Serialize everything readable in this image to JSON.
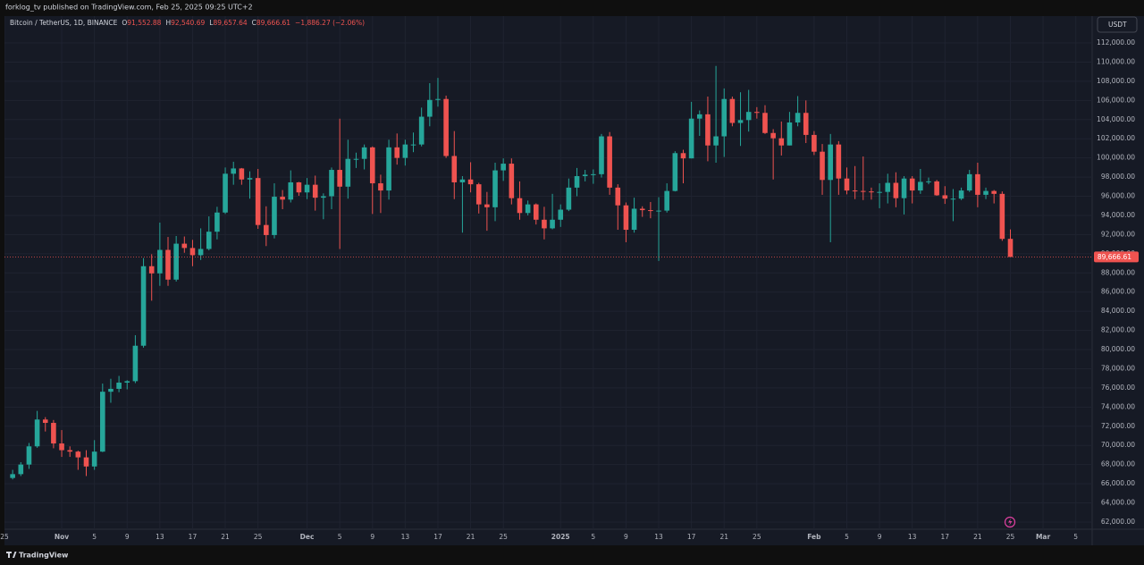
{
  "header": {
    "text": "forklog_tv published on TradingView.com, Feb 25, 2025 09:25 UTC+2"
  },
  "footer": {
    "logo": "TradingView"
  },
  "legend": {
    "symbol": "Bitcoin / TetherUS, 1D, BINANCE",
    "items": [
      {
        "label": "O",
        "value": "91,552.88"
      },
      {
        "label": "H",
        "value": "92,540.69"
      },
      {
        "label": "L",
        "value": "89,657.64"
      },
      {
        "label": "C",
        "value": "89,666.61"
      }
    ],
    "change": "−1,886.27 (−2.06%)"
  },
  "chart_data": {
    "type": "candlestick",
    "currency": "USDT",
    "up_color": "#26a69a",
    "down_color": "#ef5350",
    "grid": true,
    "xlim": [
      "2024-10-25",
      "2025-03-07"
    ],
    "ylim": [
      61250,
      114800
    ],
    "last_price": {
      "value": 89666.61,
      "label": "89,666.61"
    },
    "yticks": [
      {
        "value": 62000,
        "label": "62,000.00"
      },
      {
        "value": 64000,
        "label": "64,000.00"
      },
      {
        "value": 66000,
        "label": "66,000.00"
      },
      {
        "value": 68000,
        "label": "68,000.00"
      },
      {
        "value": 70000,
        "label": "70,000.00"
      },
      {
        "value": 72000,
        "label": "72,000.00"
      },
      {
        "value": 74000,
        "label": "74,000.00"
      },
      {
        "value": 76000,
        "label": "76,000.00"
      },
      {
        "value": 78000,
        "label": "78,000.00"
      },
      {
        "value": 80000,
        "label": "80,000.00"
      },
      {
        "value": 82000,
        "label": "82,000.00"
      },
      {
        "value": 84000,
        "label": "84,000.00"
      },
      {
        "value": 86000,
        "label": "86,000.00"
      },
      {
        "value": 88000,
        "label": "88,000.00"
      },
      {
        "value": 90000,
        "label": "90,000.00"
      },
      {
        "value": 92000,
        "label": "92,000.00"
      },
      {
        "value": 94000,
        "label": "94,000.00"
      },
      {
        "value": 96000,
        "label": "96,000.00"
      },
      {
        "value": 98000,
        "label": "98,000.00"
      },
      {
        "value": 100000,
        "label": "100,000.00"
      },
      {
        "value": 102000,
        "label": "102,000.00"
      },
      {
        "value": 104000,
        "label": "104,000.00"
      },
      {
        "value": 106000,
        "label": "106,000.00"
      },
      {
        "value": 108000,
        "label": "108,000.00"
      },
      {
        "value": 110000,
        "label": "110,000.00"
      },
      {
        "value": 112000,
        "label": "112,000.00"
      }
    ],
    "xticks": [
      {
        "value": "2024-10-25",
        "label": "25"
      },
      {
        "value": "2024-11-01",
        "label": "Nov"
      },
      {
        "value": "2024-11-05",
        "label": "5"
      },
      {
        "value": "2024-11-09",
        "label": "9"
      },
      {
        "value": "2024-11-13",
        "label": "13"
      },
      {
        "value": "2024-11-17",
        "label": "17"
      },
      {
        "value": "2024-11-21",
        "label": "21"
      },
      {
        "value": "2024-11-25",
        "label": "25"
      },
      {
        "value": "2024-12-01",
        "label": "Dec"
      },
      {
        "value": "2024-12-05",
        "label": "5"
      },
      {
        "value": "2024-12-09",
        "label": "9"
      },
      {
        "value": "2024-12-13",
        "label": "13"
      },
      {
        "value": "2024-12-17",
        "label": "17"
      },
      {
        "value": "2024-12-21",
        "label": "21"
      },
      {
        "value": "2024-12-25",
        "label": "25"
      },
      {
        "value": "2025-01-01",
        "label": "2025"
      },
      {
        "value": "2025-01-05",
        "label": "5"
      },
      {
        "value": "2025-01-09",
        "label": "9"
      },
      {
        "value": "2025-01-13",
        "label": "13"
      },
      {
        "value": "2025-01-17",
        "label": "17"
      },
      {
        "value": "2025-01-21",
        "label": "21"
      },
      {
        "value": "2025-01-25",
        "label": "25"
      },
      {
        "value": "2025-02-01",
        "label": "Feb"
      },
      {
        "value": "2025-02-05",
        "label": "5"
      },
      {
        "value": "2025-02-09",
        "label": "9"
      },
      {
        "value": "2025-02-13",
        "label": "13"
      },
      {
        "value": "2025-02-17",
        "label": "17"
      },
      {
        "value": "2025-02-21",
        "label": "21"
      },
      {
        "value": "2025-02-25",
        "label": "25"
      },
      {
        "value": "2025-03-01",
        "label": "Mar"
      },
      {
        "value": "2025-03-05",
        "label": "5"
      }
    ],
    "x": [
      "2024-10-26",
      "2024-10-27",
      "2024-10-28",
      "2024-10-29",
      "2024-10-30",
      "2024-10-31",
      "2024-11-01",
      "2024-11-02",
      "2024-11-03",
      "2024-11-04",
      "2024-11-05",
      "2024-11-06",
      "2024-11-07",
      "2024-11-08",
      "2024-11-09",
      "2024-11-10",
      "2024-11-11",
      "2024-11-12",
      "2024-11-13",
      "2024-11-14",
      "2024-11-15",
      "2024-11-16",
      "2024-11-17",
      "2024-11-18",
      "2024-11-19",
      "2024-11-20",
      "2024-11-21",
      "2024-11-22",
      "2024-11-23",
      "2024-11-24",
      "2024-11-25",
      "2024-11-26",
      "2024-11-27",
      "2024-11-28",
      "2024-11-29",
      "2024-11-30",
      "2024-12-01",
      "2024-12-02",
      "2024-12-03",
      "2024-12-04",
      "2024-12-05",
      "2024-12-06",
      "2024-12-07",
      "2024-12-08",
      "2024-12-09",
      "2024-12-10",
      "2024-12-11",
      "2024-12-12",
      "2024-12-13",
      "2024-12-14",
      "2024-12-15",
      "2024-12-16",
      "2024-12-17",
      "2024-12-18",
      "2024-12-19",
      "2024-12-20",
      "2024-12-21",
      "2024-12-22",
      "2024-12-23",
      "2024-12-24",
      "2024-12-25",
      "2024-12-26",
      "2024-12-27",
      "2024-12-28",
      "2024-12-29",
      "2024-12-30",
      "2024-12-31",
      "2025-01-01",
      "2025-01-02",
      "2025-01-03",
      "2025-01-04",
      "2025-01-05",
      "2025-01-06",
      "2025-01-07",
      "2025-01-08",
      "2025-01-09",
      "2025-01-10",
      "2025-01-11",
      "2025-01-12",
      "2025-01-13",
      "2025-01-14",
      "2025-01-15",
      "2025-01-16",
      "2025-01-17",
      "2025-01-18",
      "2025-01-19",
      "2025-01-20",
      "2025-01-21",
      "2025-01-22",
      "2025-01-23",
      "2025-01-24",
      "2025-01-25",
      "2025-01-26",
      "2025-01-27",
      "2025-01-28",
      "2025-01-29",
      "2025-01-30",
      "2025-01-31",
      "2025-02-01",
      "2025-02-02",
      "2025-02-03",
      "2025-02-04",
      "2025-02-05",
      "2025-02-06",
      "2025-02-07",
      "2025-02-08",
      "2025-02-09",
      "2025-02-10",
      "2025-02-11",
      "2025-02-12",
      "2025-02-13",
      "2025-02-14",
      "2025-02-15",
      "2025-02-16",
      "2025-02-17",
      "2025-02-18",
      "2025-02-19",
      "2025-02-20",
      "2025-02-21",
      "2025-02-22",
      "2025-02-23",
      "2025-02-24",
      "2025-02-25"
    ],
    "open": [
      66600,
      67000,
      68000,
      69900,
      72700,
      72350,
      70200,
      69500,
      69350,
      68750,
      67800,
      69350,
      75600,
      75900,
      76550,
      76700,
      80400,
      88700,
      87950,
      90400,
      87300,
      91050,
      90600,
      89850,
      90500,
      92300,
      94300,
      98350,
      98900,
      97750,
      97900,
      93000,
      91950,
      95950,
      95650,
      97450,
      96400,
      97200,
      95850,
      96000,
      98750,
      97000,
      99900,
      99900,
      101100,
      97350,
      96600,
      101100,
      100000,
      101400,
      101400,
      104300,
      106050,
      106150,
      100200,
      97450,
      97750,
      97250,
      95150,
      94850,
      98700,
      99400,
      95800,
      94250,
      95150,
      93550,
      92650,
      93550,
      94600,
      96900,
      98100,
      98250,
      98300,
      102250,
      96900,
      95050,
      92500,
      94700,
      94550,
      94500,
      94500,
      96550,
      100500,
      99950,
      104100,
      104550,
      101300,
      102250,
      106150,
      103650,
      103950,
      104800,
      104700,
      102600,
      102050,
      101300,
      103700,
      104700,
      102400,
      100650,
      97700,
      101400,
      97850,
      96600,
      96550,
      96500,
      96450,
      96450,
      97400,
      95800,
      97850,
      96600,
      97500,
      97550,
      96100,
      95750,
      95750,
      96600,
      98300,
      96150,
      96550,
      96250,
      91552.88
    ],
    "high": [
      67450,
      68250,
      70250,
      73600,
      72950,
      72650,
      71600,
      69900,
      69450,
      69500,
      70550,
      76450,
      76950,
      77250,
      76800,
      81500,
      89550,
      89950,
      93250,
      91750,
      91850,
      91800,
      91450,
      92650,
      93900,
      94900,
      99000,
      99600,
      98950,
      98600,
      98850,
      94950,
      97350,
      96650,
      98700,
      97500,
      97900,
      98150,
      96300,
      99000,
      104100,
      101900,
      100550,
      101400,
      101200,
      98250,
      101900,
      102550,
      101900,
      102650,
      105250,
      107800,
      108350,
      106500,
      102800,
      98100,
      99550,
      97400,
      96450,
      99500,
      99950,
      99950,
      97550,
      95550,
      95250,
      94900,
      96250,
      95150,
      97850,
      98950,
      98750,
      98800,
      102500,
      102700,
      97250,
      95350,
      95850,
      94950,
      95400,
      95900,
      97350,
      100700,
      100850,
      105850,
      104950,
      106400,
      109600,
      107250,
      106400,
      106850,
      107100,
      105300,
      105500,
      103000,
      103800,
      104800,
      106450,
      106000,
      102800,
      101450,
      102500,
      101750,
      99000,
      99150,
      100150,
      96900,
      97350,
      98350,
      98500,
      98100,
      98100,
      98850,
      97950,
      97700,
      97050,
      96750,
      96900,
      98750,
      99500,
      96900,
      96650,
      96500,
      92540.69
    ],
    "low": [
      66450,
      66800,
      67550,
      69750,
      71450,
      69700,
      68800,
      68800,
      67450,
      66800,
      67450,
      69300,
      74450,
      75550,
      75850,
      76500,
      80200,
      85100,
      86650,
      86650,
      87100,
      90100,
      88700,
      89350,
      90350,
      91500,
      94150,
      97200,
      97200,
      95750,
      92600,
      90800,
      91600,
      94650,
      95350,
      96050,
      95700,
      94500,
      93600,
      94650,
      90500,
      95750,
      98950,
      98800,
      94150,
      94250,
      95650,
      99300,
      99200,
      100600,
      101200,
      103300,
      105350,
      100000,
      95700,
      92200,
      96400,
      94200,
      92400,
      93400,
      97600,
      95150,
      93550,
      94000,
      93050,
      91500,
      92550,
      92800,
      94450,
      96000,
      97550,
      97300,
      97950,
      96150,
      92500,
      91200,
      92200,
      93850,
      93700,
      89250,
      94300,
      96500,
      97350,
      99950,
      102300,
      99650,
      99500,
      100100,
      103300,
      101250,
      102750,
      104100,
      102500,
      97750,
      100250,
      101300,
      103300,
      101550,
      100300,
      96150,
      91200,
      96150,
      96200,
      95700,
      95600,
      95650,
      94750,
      95250,
      94850,
      94100,
      95250,
      96250,
      97250,
      96050,
      95200,
      93400,
      95600,
      96450,
      94850,
      95700,
      95250,
      91350,
      89657.64
    ],
    "close": [
      67000,
      68000,
      69900,
      72700,
      72350,
      70200,
      69500,
      69350,
      68750,
      67800,
      69350,
      75600,
      75900,
      76550,
      76700,
      80400,
      88700,
      87950,
      90400,
      87300,
      91050,
      90600,
      89850,
      90500,
      92300,
      94300,
      98350,
      98900,
      97750,
      97900,
      93000,
      91950,
      95950,
      95650,
      97450,
      96400,
      97200,
      95850,
      96000,
      98750,
      97000,
      99900,
      99900,
      101100,
      97350,
      96600,
      101100,
      100000,
      101400,
      101400,
      104300,
      106050,
      106150,
      100200,
      97450,
      97750,
      97250,
      95150,
      94850,
      98700,
      99400,
      95800,
      94250,
      95150,
      93550,
      92650,
      93550,
      94600,
      96900,
      98100,
      98250,
      98300,
      102250,
      96900,
      95050,
      92500,
      94700,
      94550,
      94500,
      94500,
      96550,
      100500,
      99950,
      104100,
      104550,
      101300,
      102250,
      106150,
      103650,
      103950,
      104800,
      104700,
      102600,
      102050,
      101300,
      103700,
      104700,
      102400,
      100650,
      97700,
      101400,
      97850,
      96600,
      96550,
      96500,
      96450,
      96450,
      97400,
      95800,
      97850,
      96600,
      97500,
      97550,
      96100,
      95750,
      95750,
      96600,
      98300,
      96150,
      96550,
      96250,
      91552.88,
      89666.61
    ]
  }
}
